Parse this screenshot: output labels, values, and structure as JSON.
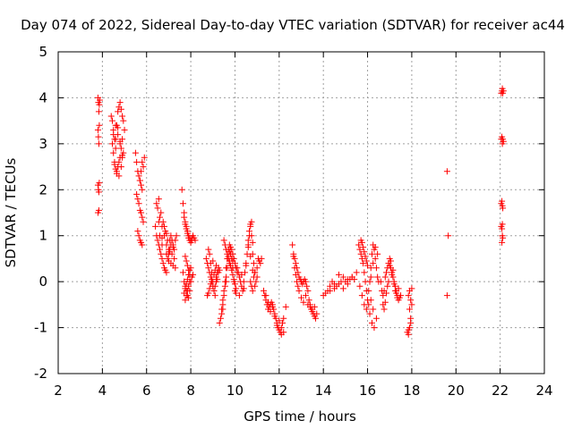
{
  "chart_data": {
    "type": "scatter",
    "title": "Day 074 of 2022, Sidereal Day-to-day VTEC variation (SDTVAR) for receiver ac44",
    "xlabel": "GPS time / hours",
    "ylabel": "SDTVAR / TECUs",
    "xlim": [
      2,
      24
    ],
    "ylim": [
      -2,
      5
    ],
    "xticks": [
      "2",
      "4",
      "6",
      "8",
      "10",
      "12",
      "14",
      "16",
      "18",
      "20",
      "22",
      "24"
    ],
    "yticks": [
      "-2",
      "-1",
      "0",
      "1",
      "2",
      "3",
      "4",
      "5"
    ],
    "grid": true,
    "marker": "+",
    "color": "#ff0000",
    "series": [
      {
        "name": "SDTVAR",
        "x": [
          3.8,
          3.82,
          3.84,
          3.86,
          3.88,
          3.8,
          3.82,
          3.84,
          3.86,
          3.8,
          3.82,
          3.84,
          3.86,
          3.8,
          3.84,
          4.4,
          4.45,
          4.5,
          4.55,
          4.6,
          4.65,
          4.7,
          4.75,
          4.8,
          4.85,
          4.9,
          4.95,
          5.0,
          4.45,
          4.5,
          4.55,
          4.6,
          4.65,
          4.7,
          4.75,
          4.8,
          4.85,
          4.9,
          4.5,
          4.6,
          4.7,
          4.8,
          4.9,
          4.55,
          4.65,
          4.75,
          4.85,
          4.95,
          4.6,
          4.7,
          4.8,
          4.9,
          5.5,
          5.55,
          5.6,
          5.65,
          5.7,
          5.75,
          5.8,
          5.85,
          5.9,
          5.55,
          5.6,
          5.65,
          5.7,
          5.75,
          5.8,
          5.85,
          5.6,
          5.7,
          5.8,
          5.65,
          5.75,
          5.7,
          5.75,
          5.8,
          6.4,
          6.45,
          6.5,
          6.55,
          6.6,
          6.65,
          6.7,
          6.75,
          6.8,
          6.85,
          6.9,
          6.95,
          7.0,
          7.05,
          7.1,
          7.15,
          7.2,
          7.25,
          7.3,
          7.35,
          6.5,
          6.6,
          6.7,
          6.8,
          6.9,
          7.0,
          7.1,
          7.2,
          7.3,
          6.55,
          6.65,
          6.75,
          6.85,
          6.95,
          7.05,
          7.15,
          7.25,
          6.6,
          6.7,
          6.8,
          6.9,
          7.0,
          7.1,
          6.45,
          6.55,
          6.7,
          6.9,
          7.05,
          7.2,
          7.6,
          7.65,
          7.7,
          7.75,
          7.8,
          7.85,
          7.9,
          7.95,
          8.0,
          8.05,
          8.1,
          8.15,
          8.2,
          7.7,
          7.75,
          7.8,
          7.85,
          7.9,
          7.95,
          8.0,
          8.05,
          7.65,
          7.7,
          7.75,
          7.8,
          7.85,
          7.9,
          7.95,
          8.0,
          8.05,
          8.1,
          7.7,
          7.75,
          7.8,
          7.85,
          7.9,
          7.95,
          8.0,
          7.75,
          7.8,
          7.85,
          7.9,
          7.95,
          7.75,
          7.8,
          7.85,
          7.9,
          7.95,
          8.7,
          8.75,
          8.8,
          8.85,
          8.9,
          8.95,
          9.0,
          9.05,
          9.1,
          9.15,
          9.2,
          9.25,
          9.3,
          8.8,
          8.85,
          8.9,
          8.95,
          9.0,
          9.05,
          9.1,
          9.15,
          8.75,
          8.85,
          8.95,
          9.05,
          9.15,
          9.25,
          8.8,
          8.9,
          9.0,
          9.1,
          9.2,
          9.3,
          9.35,
          9.4,
          9.45,
          9.5,
          9.55,
          9.6,
          9.65,
          9.7,
          9.75,
          9.8,
          9.85,
          9.9,
          9.95,
          10.0,
          10.05,
          10.1,
          9.4,
          9.45,
          9.5,
          9.55,
          9.6,
          9.65,
          9.7,
          9.75,
          9.8,
          9.85,
          9.9,
          9.95,
          10.0,
          9.5,
          9.55,
          9.6,
          9.65,
          9.7,
          9.75,
          9.8,
          9.85,
          9.9,
          9.95,
          10.0,
          10.05,
          9.45,
          9.6,
          9.75,
          9.9,
          10.05,
          10.1,
          10.15,
          10.2,
          10.25,
          10.3,
          10.35,
          10.4,
          10.45,
          10.5,
          10.55,
          10.6,
          10.65,
          10.7,
          10.75,
          10.8,
          10.85,
          10.9,
          10.95,
          11.0,
          11.05,
          11.1,
          11.15,
          11.2,
          10.2,
          10.3,
          10.4,
          10.5,
          10.6,
          10.7,
          10.8,
          10.9,
          11.0,
          10.6,
          10.65,
          10.7,
          10.75,
          10.8,
          10.7,
          10.75,
          10.8,
          10.85,
          10.9,
          11.3,
          11.35,
          11.4,
          11.45,
          11.5,
          11.55,
          11.6,
          11.65,
          11.7,
          11.75,
          11.8,
          11.85,
          11.9,
          11.95,
          12.0,
          12.05,
          12.1,
          12.15,
          12.2,
          11.4,
          11.5,
          11.6,
          11.7,
          11.8,
          11.9,
          12.0,
          12.1,
          12.2,
          12.3,
          12.6,
          12.65,
          12.7,
          12.75,
          12.8,
          12.85,
          12.9,
          12.95,
          13.0,
          13.05,
          13.1,
          13.15,
          13.2,
          13.25,
          13.3,
          13.35,
          13.4,
          13.45,
          13.5,
          13.55,
          13.6,
          13.65,
          13.7,
          12.7,
          12.8,
          12.9,
          13.0,
          13.1,
          13.2,
          13.3,
          13.4,
          13.5,
          13.6,
          12.65,
          12.75,
          12.85,
          14.0,
          14.1,
          14.2,
          14.3,
          14.4,
          14.5,
          14.6,
          14.7,
          14.8,
          14.9,
          15.0,
          15.1,
          15.2,
          15.3,
          15.4,
          15.5,
          14.3,
          14.5,
          14.7,
          14.9,
          15.1,
          15.3,
          15.6,
          15.65,
          15.7,
          15.75,
          15.8,
          15.85,
          15.9,
          15.95,
          16.0,
          16.05,
          16.1,
          16.15,
          16.2,
          16.25,
          16.3,
          16.35,
          16.4,
          16.45,
          16.5,
          15.7,
          15.75,
          15.8,
          15.85,
          15.9,
          15.95,
          16.0,
          15.65,
          15.75,
          15.85,
          15.95,
          16.05,
          16.15,
          16.25,
          16.35,
          16.45,
          16.1,
          16.2,
          16.3,
          16.4,
          16.15,
          16.25,
          16.6,
          16.65,
          16.7,
          16.75,
          16.8,
          16.85,
          16.9,
          16.95,
          17.0,
          17.05,
          17.1,
          17.15,
          17.2,
          17.25,
          17.3,
          17.35,
          17.4,
          17.45,
          17.5,
          16.7,
          16.8,
          16.9,
          17.0,
          17.1,
          17.2,
          17.3,
          17.4,
          16.75,
          16.85,
          16.95,
          17.05,
          17.15,
          17.25,
          17.35,
          17.8,
          17.85,
          17.9,
          17.95,
          18.0,
          17.85,
          17.9,
          17.95,
          18.0,
          17.9,
          17.95,
          17.85,
          19.6,
          19.65,
          19.6,
          22.05,
          22.08,
          22.1,
          22.12,
          22.15,
          22.05,
          22.08,
          22.1,
          22.12,
          22.15,
          22.05,
          22.08,
          22.1,
          22.12,
          22.05,
          22.08,
          22.1,
          22.12,
          22.08,
          22.1
        ],
        "y": [
          4.0,
          3.9,
          3.7,
          3.85,
          3.95,
          3.3,
          3.15,
          3.0,
          3.4,
          2.1,
          2.0,
          1.95,
          2.15,
          1.5,
          1.55,
          3.6,
          3.5,
          3.3,
          3.1,
          2.9,
          3.4,
          3.7,
          3.8,
          3.9,
          3.75,
          3.6,
          3.5,
          3.3,
          3.0,
          2.8,
          2.6,
          2.45,
          2.4,
          2.5,
          2.6,
          2.7,
          2.9,
          3.1,
          3.2,
          3.1,
          3.35,
          3.05,
          2.75,
          2.55,
          2.35,
          2.3,
          2.5,
          2.8,
          3.4,
          3.2,
          3.0,
          2.7,
          2.8,
          2.6,
          2.4,
          2.3,
          2.2,
          2.1,
          2.0,
          2.5,
          2.7,
          1.9,
          1.8,
          1.7,
          1.55,
          1.5,
          1.4,
          1.3,
          1.1,
          0.9,
          0.8,
          1.0,
          0.85,
          2.2,
          2.4,
          2.6,
          1.2,
          1.0,
          0.9,
          0.8,
          0.7,
          0.6,
          0.5,
          0.4,
          0.3,
          0.25,
          0.2,
          0.5,
          0.7,
          0.9,
          1.0,
          0.9,
          0.8,
          0.7,
          0.9,
          1.0,
          1.6,
          1.4,
          1.2,
          1.0,
          0.8,
          0.6,
          0.4,
          0.35,
          0.3,
          1.8,
          1.5,
          1.3,
          1.1,
          0.9,
          0.7,
          0.6,
          0.5,
          1.0,
          0.8,
          1.2,
          0.6,
          0.45,
          0.8,
          1.7,
          1.3,
          0.95,
          1.05,
          0.65,
          0.75,
          2.0,
          1.7,
          1.5,
          1.3,
          1.2,
          1.1,
          1.0,
          0.95,
          0.9,
          0.95,
          1.0,
          0.95,
          0.9,
          1.4,
          1.25,
          1.15,
          1.05,
          0.95,
          0.9,
          0.85,
          0.9,
          0.2,
          0.0,
          -0.1,
          -0.2,
          -0.3,
          -0.35,
          -0.2,
          0.0,
          0.1,
          0.15,
          -0.25,
          -0.15,
          -0.05,
          0.05,
          0.15,
          0.25,
          0.3,
          0.55,
          0.45,
          0.35,
          0.25,
          0.15,
          -0.4,
          -0.3,
          -0.2,
          -0.1,
          0.0,
          0.5,
          0.4,
          0.3,
          0.2,
          0.1,
          0.0,
          -0.1,
          -0.2,
          -0.3,
          0.0,
          0.2,
          0.3,
          0.25,
          0.7,
          0.6,
          0.4,
          0.2,
          0.0,
          -0.2,
          -0.1,
          0.1,
          -0.3,
          -0.15,
          0.05,
          0.15,
          0.35,
          0.2,
          -0.25,
          -0.05,
          0.45,
          0.25,
          0.05,
          -0.9,
          -0.8,
          -0.6,
          -0.4,
          -0.2,
          0.0,
          0.3,
          0.5,
          0.7,
          0.8,
          0.75,
          0.7,
          0.6,
          0.5,
          0.4,
          0.3,
          0.2,
          -0.7,
          -0.5,
          -0.3,
          -0.1,
          0.1,
          0.3,
          0.5,
          0.65,
          0.6,
          0.5,
          0.3,
          0.0,
          -0.2,
          0.9,
          0.8,
          0.7,
          0.6,
          0.55,
          0.45,
          0.35,
          0.25,
          0.15,
          0.05,
          -0.05,
          -0.15,
          -0.6,
          0.0,
          0.4,
          0.45,
          -0.25,
          0.3,
          0.2,
          0.1,
          0.0,
          -0.1,
          -0.2,
          0.0,
          0.2,
          0.4,
          0.6,
          0.8,
          1.0,
          1.2,
          1.3,
          0.6,
          0.4,
          0.2,
          0.0,
          0.3,
          0.5,
          0.45,
          0.4,
          0.5,
          -0.3,
          0.15,
          -0.15,
          0.35,
          0.75,
          0.55,
          0.25,
          -0.1,
          0.1,
          0.9,
          1.1,
          1.25,
          1.0,
          0.85,
          0.0,
          -0.1,
          -0.2,
          0.1,
          0.2,
          -0.2,
          -0.3,
          -0.4,
          -0.5,
          -0.6,
          -0.55,
          -0.5,
          -0.45,
          -0.5,
          -0.6,
          -0.7,
          -0.8,
          -0.9,
          -1.0,
          -1.05,
          -1.1,
          -1.15,
          -0.9,
          -0.8,
          -0.3,
          -0.45,
          -0.65,
          -0.55,
          -0.75,
          -0.95,
          -0.85,
          -1.0,
          -1.1,
          -0.55,
          0.8,
          0.6,
          0.5,
          0.4,
          0.3,
          0.2,
          0.1,
          0.05,
          0.0,
          -0.05,
          0.0,
          0.05,
          0.0,
          -0.1,
          -0.2,
          -0.4,
          -0.5,
          -0.6,
          -0.65,
          -0.7,
          -0.75,
          -0.8,
          -0.7,
          0.3,
          0.0,
          -0.2,
          -0.35,
          -0.45,
          -0.3,
          -0.5,
          -0.55,
          -0.6,
          -0.55,
          0.55,
          0.15,
          -0.1,
          -0.3,
          -0.25,
          -0.2,
          -0.1,
          0.0,
          -0.05,
          -0.1,
          -0.05,
          0.0,
          0.1,
          0.0,
          -0.05,
          0.05,
          0.1,
          0.05,
          0.2,
          -0.2,
          -0.15,
          0.15,
          -0.15,
          0.05,
          0.1,
          0.8,
          0.7,
          0.6,
          0.5,
          0.4,
          0.2,
          0.0,
          -0.2,
          -0.4,
          -0.5,
          0.0,
          0.3,
          0.6,
          0.8,
          0.7,
          0.5,
          0.3,
          0.1,
          0.0,
          0.9,
          0.85,
          0.75,
          0.65,
          0.55,
          0.45,
          0.35,
          -0.1,
          -0.3,
          -0.5,
          -0.6,
          -0.2,
          0.1,
          0.4,
          0.75,
          0.6,
          -0.7,
          -0.9,
          -1.0,
          -0.8,
          -0.4,
          -0.6,
          0.0,
          -0.2,
          -0.3,
          -0.2,
          0.1,
          0.2,
          0.3,
          0.4,
          0.5,
          0.3,
          0.2,
          0.1,
          0.0,
          -0.1,
          -0.2,
          -0.3,
          -0.4,
          -0.35,
          -0.3,
          -0.5,
          -0.45,
          -0.1,
          0.35,
          0.15,
          -0.05,
          -0.25,
          -0.15,
          -0.6,
          -0.25,
          0.0,
          0.45,
          0.25,
          -0.2,
          -0.35,
          -1.1,
          -1.15,
          -1.0,
          -0.8,
          -0.5,
          -0.3,
          -0.2,
          -0.4,
          -0.15,
          -0.6,
          -0.9,
          -1.05,
          2.4,
          1.0,
          -0.3,
          4.1,
          4.15,
          4.2,
          4.1,
          4.15,
          3.1,
          3.15,
          3.0,
          3.1,
          3.05,
          1.7,
          1.75,
          1.65,
          1.6,
          1.2,
          1.15,
          1.0,
          0.95,
          0.85,
          1.25
        ]
      }
    ]
  }
}
